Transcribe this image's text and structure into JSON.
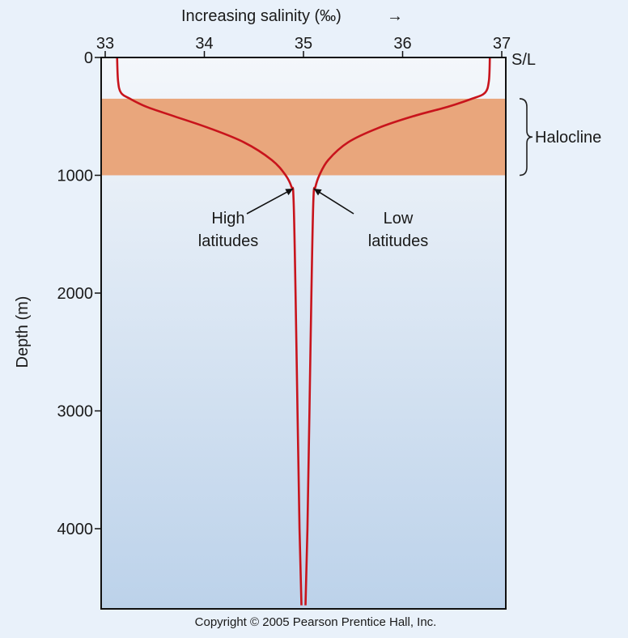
{
  "chart_data": {
    "type": "line",
    "title": "",
    "xlabel": "Increasing salinity (‰)",
    "xlabel_arrow": "→",
    "ylabel": "Depth (m)",
    "x_unit_label": "S/L",
    "xlim": [
      33,
      37
    ],
    "ylim": [
      0,
      4650
    ],
    "x_axis_position": "top",
    "y_inverted": true,
    "x_ticks": [
      33,
      34,
      35,
      36,
      37
    ],
    "y_ticks": [
      0,
      1000,
      2000,
      3000,
      4000
    ],
    "grid": false,
    "series": [
      {
        "name": "",
        "color": "#c8141c",
        "x": [
          33.12,
          33.13,
          33.16,
          33.25,
          33.42,
          33.7,
          34.05,
          34.4,
          34.68,
          34.82,
          34.88,
          34.9,
          34.92,
          34.94,
          34.96,
          34.98
        ],
        "y": [
          0,
          200,
          300,
          350,
          420,
          500,
          600,
          720,
          870,
          1000,
          1100,
          1200,
          2000,
          3000,
          4000,
          4650
        ]
      },
      {
        "name": "",
        "color": "#c8141c",
        "x": [
          36.88,
          36.87,
          36.83,
          36.7,
          36.45,
          36.1,
          35.75,
          35.45,
          35.25,
          35.16,
          35.12,
          35.1,
          35.08,
          35.06,
          35.04,
          35.02
        ],
        "y": [
          0,
          200,
          300,
          350,
          420,
          500,
          600,
          720,
          870,
          1000,
          1100,
          1200,
          2000,
          3000,
          4000,
          4650
        ]
      }
    ],
    "shaded_band": {
      "label": "Halocline",
      "depth_range": [
        350,
        1000
      ],
      "color": "#e9a67c"
    },
    "annotations": [
      {
        "text_lines": [
          "High",
          "latitudes"
        ],
        "points_to": {
          "x": 34.88,
          "depth": 1100
        }
      },
      {
        "text_lines": [
          "Low",
          "latitudes"
        ],
        "points_to": {
          "x": 35.12,
          "depth": 1100
        }
      }
    ]
  },
  "copyright": "Copyright © 2005 Pearson Prentice Hall, Inc.",
  "colors": {
    "page_background": "#e9f1fa",
    "plot_gradient_top": "#f4f7fb",
    "plot_gradient_bottom": "#bcd2ea",
    "frame": "#111111"
  }
}
